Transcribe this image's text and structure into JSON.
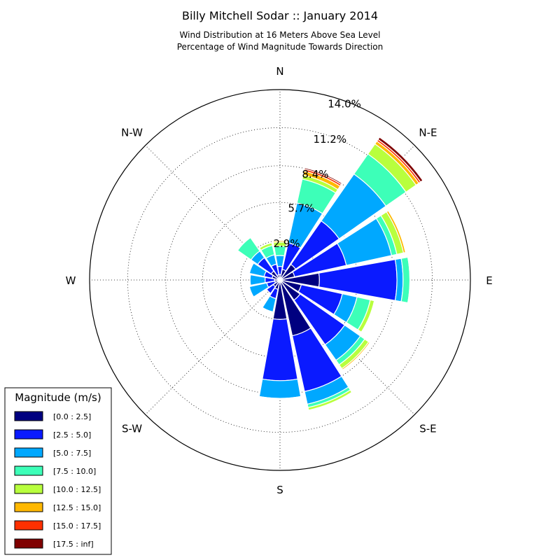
{
  "chart_data": {
    "type": "windrose",
    "title": "Billy Mitchell Sodar :: January 2014",
    "subtitle_lines": [
      "Wind Distribution at 16 Meters Above Sea Level",
      "Percentage of Wind Magnitude Towards Direction"
    ],
    "direction_labels": [
      "N",
      "N-E",
      "E",
      "S-E",
      "S",
      "S-W",
      "W",
      "N-W"
    ],
    "radial_tick_labels": [
      "2.9%",
      "5.7%",
      "8.4%",
      "11.2%",
      "14.0%"
    ],
    "radial_ticks": [
      2.9,
      5.7,
      8.4,
      11.2,
      14.0
    ],
    "radial_max": 14.0,
    "legend": {
      "title": "Magnitude (m/s)",
      "placement": "lower-left"
    },
    "bins": [
      {
        "label": "[0.0 : 2.5]",
        "color": "#000080"
      },
      {
        "label": "[2.5 : 5.0]",
        "color": "#0a1aff"
      },
      {
        "label": "[5.0 : 7.5]",
        "color": "#00a8ff"
      },
      {
        "label": "[7.5 : 10.0]",
        "color": "#3dffb8"
      },
      {
        "label": "[10.0 : 12.5]",
        "color": "#b8ff3d"
      },
      {
        "label": "[12.5 : 15.0]",
        "color": "#ffb800"
      },
      {
        "label": "[15.0 : 17.5]",
        "color": "#ff3000"
      },
      {
        "label": "[17.5 : inf]",
        "color": "#800000"
      }
    ],
    "direction_degrees": [
      0,
      22.5,
      45,
      67.5,
      90,
      112.5,
      135,
      157.5,
      180,
      202.5,
      225,
      247.5,
      270,
      292.5,
      315,
      337.5
    ],
    "series_cumulative": [
      [
        0.4,
        1.0,
        1.8,
        2.5,
        2.8,
        2.9,
        2.9,
        2.9
      ],
      [
        0.8,
        2.8,
        5.8,
        7.6,
        7.9,
        8.2,
        8.35,
        8.45
      ],
      [
        1.4,
        5.3,
        9.5,
        11.3,
        12.2,
        12.45,
        12.6,
        12.8
      ],
      [
        1.1,
        5.0,
        8.4,
        8.8,
        9.3,
        9.45,
        9.45,
        9.45
      ],
      [
        2.9,
        8.6,
        9.05,
        9.55,
        9.6,
        9.6,
        9.6,
        9.6
      ],
      [
        1.6,
        4.7,
        5.8,
        6.8,
        7.1,
        7.1,
        7.1,
        7.1
      ],
      [
        1.8,
        5.8,
        7.2,
        7.6,
        7.95,
        8.05,
        8.05,
        8.05
      ],
      [
        4.2,
        8.4,
        9.35,
        9.6,
        9.8,
        9.8,
        9.8,
        9.8
      ],
      [
        2.9,
        7.4,
        8.7,
        8.75,
        8.75,
        8.8,
        8.8,
        8.8
      ],
      [
        0.7,
        1.4,
        2.4,
        2.4,
        2.4,
        2.4,
        2.4,
        2.4
      ],
      [
        0.6,
        1.2,
        1.2,
        1.2,
        1.2,
        1.2,
        1.2,
        1.2
      ],
      [
        0.4,
        1.0,
        2.3,
        2.3,
        2.3,
        2.3,
        2.3,
        2.3
      ],
      [
        0.4,
        1.1,
        2.2,
        2.2,
        2.2,
        2.2,
        2.2,
        2.2
      ],
      [
        0.6,
        1.2,
        2.3,
        2.3,
        2.3,
        2.3,
        2.3,
        2.3
      ],
      [
        0.8,
        2.0,
        2.6,
        3.8,
        3.8,
        3.8,
        3.8,
        3.8
      ],
      [
        0.4,
        1.2,
        1.9,
        2.6,
        2.8,
        2.8,
        2.8,
        2.8
      ]
    ]
  }
}
